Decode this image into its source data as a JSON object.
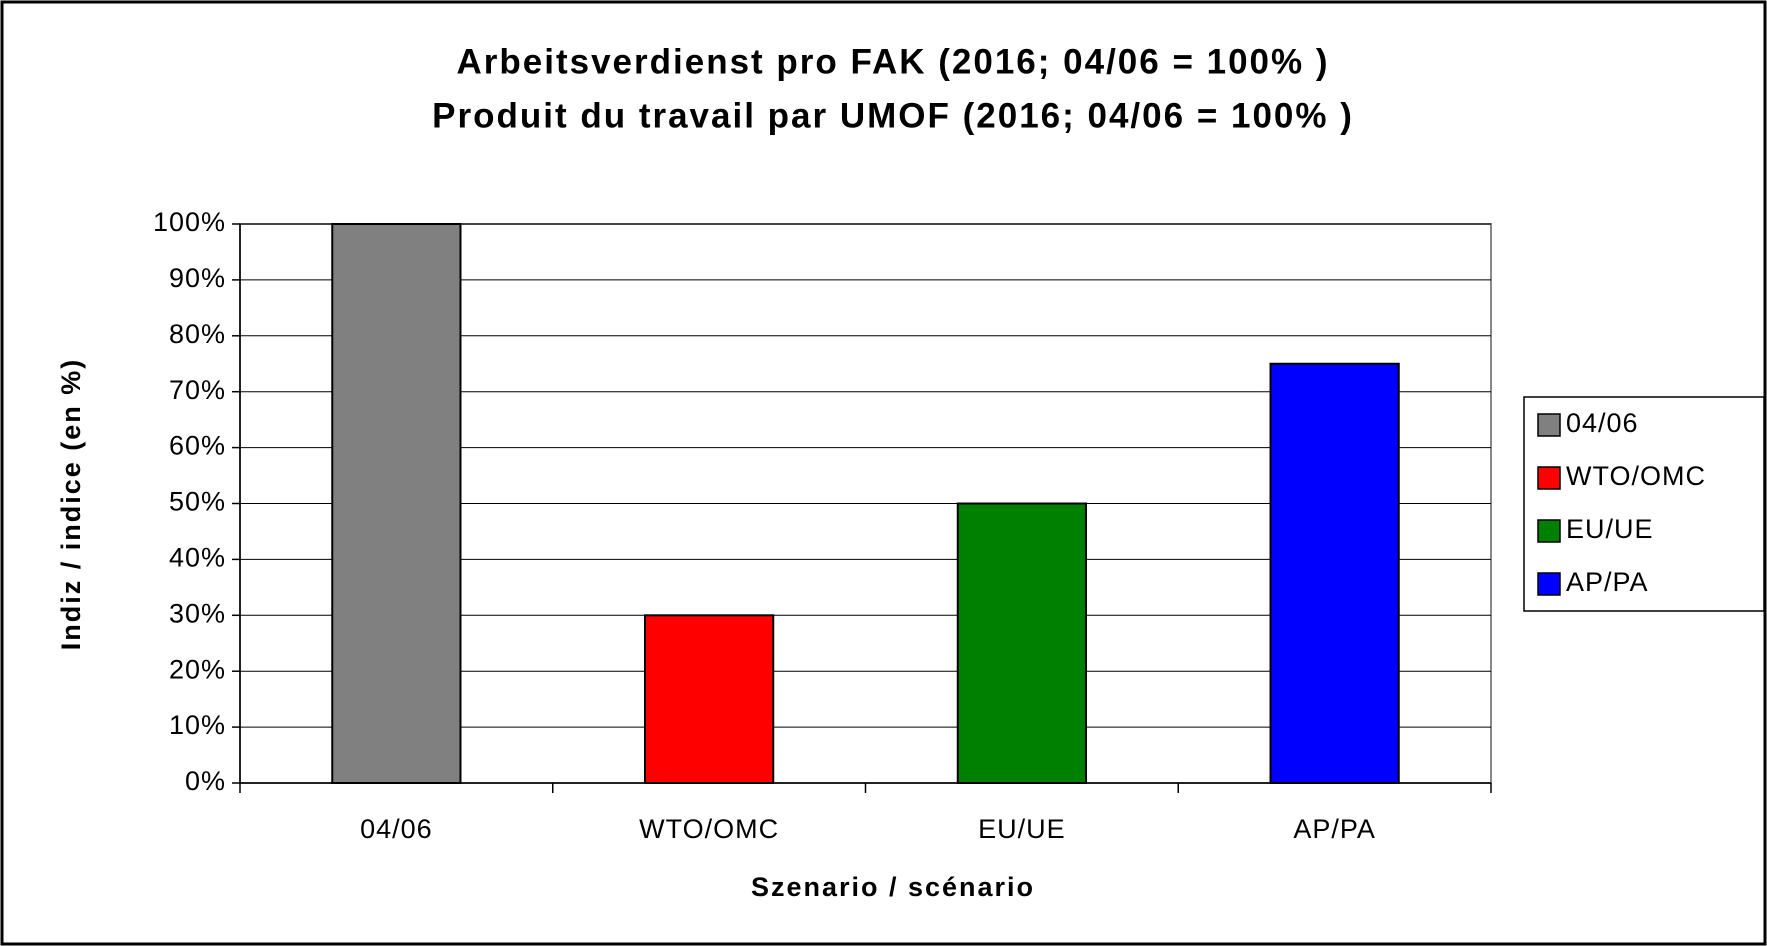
{
  "chart_data": {
    "type": "bar",
    "title": "Arbeitsverdienst pro FAK (2016; 04/06 = 100% )",
    "subtitle": "Produit du travail par UMOF (2016; 04/06 = 100% )",
    "x_label": "Szenario / scénario",
    "y_label": "Indiz / indice (en %)",
    "categories": [
      "04/06",
      "WTO/OMC",
      "EU/UE",
      "AP/PA"
    ],
    "values": [
      100,
      30,
      50,
      75
    ],
    "colors": [
      "#808080",
      "#ff0000",
      "#008000",
      "#0000ff"
    ],
    "ylim": [
      0,
      100
    ],
    "yticks": [
      {
        "value": 0,
        "label": "0%"
      },
      {
        "value": 10,
        "label": "10%"
      },
      {
        "value": 20,
        "label": "20%"
      },
      {
        "value": 30,
        "label": "30%"
      },
      {
        "value": 40,
        "label": "40%"
      },
      {
        "value": 50,
        "label": "50%"
      },
      {
        "value": 60,
        "label": "60%"
      },
      {
        "value": 70,
        "label": "70%"
      },
      {
        "value": 80,
        "label": "80%"
      },
      {
        "value": 90,
        "label": "90%"
      },
      {
        "value": 100,
        "label": "100%"
      }
    ],
    "grid": true,
    "legend": "right"
  }
}
